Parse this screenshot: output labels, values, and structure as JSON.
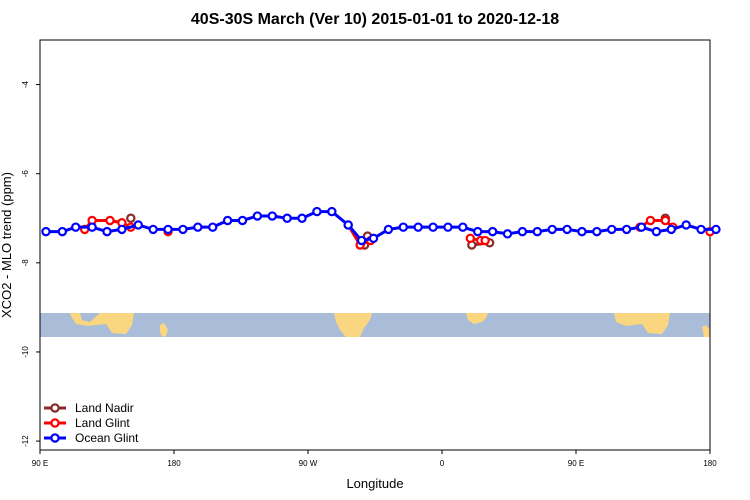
{
  "chart_data": {
    "type": "line",
    "title": "40S-30S March (Ver 10)   2015-01-01 to 2020-12-18",
    "xlabel": "Longitude",
    "ylabel": "XCO2 - MLO trend (ppm)",
    "xlim": [
      90,
      540
    ],
    "ylim": [
      -12.2,
      -3.0
    ],
    "x_ticks": [
      {
        "value": 90,
        "label": "90 E"
      },
      {
        "value": 180,
        "label": "180"
      },
      {
        "value": 270,
        "label": "90 W"
      },
      {
        "value": 360,
        "label": "0"
      },
      {
        "value": 450,
        "label": "90 E"
      },
      {
        "value": 540,
        "label": "180"
      }
    ],
    "y_ticks": [
      {
        "value": -4,
        "label": "-4"
      },
      {
        "value": -6,
        "label": "-6"
      },
      {
        "value": -8,
        "label": "-8"
      },
      {
        "value": -10,
        "label": "-10"
      },
      {
        "value": -12,
        "label": "-12"
      }
    ],
    "legend_position": "bottom-left",
    "series": [
      {
        "name": "Land Nadir",
        "color": "#8b2a2a",
        "points": [
          [
            151,
            -7.0
          ],
          [
            308,
            -7.6
          ],
          [
            310,
            -7.4
          ],
          [
            510,
            -7.0
          ],
          [
            380,
            -7.6
          ],
          [
            392,
            -7.55
          ]
        ]
      },
      {
        "name": "Land Glint",
        "color": "#ff0000",
        "points": [
          [
            120,
            -7.25
          ],
          [
            125,
            -7.05
          ],
          [
            137,
            -7.05
          ],
          [
            145,
            -7.1
          ],
          [
            151,
            -7.2
          ],
          [
            176,
            -7.3
          ],
          [
            297,
            -7.15
          ],
          [
            305,
            -7.6
          ],
          [
            312,
            -7.5
          ],
          [
            379,
            -7.45
          ],
          [
            386,
            -7.5
          ],
          [
            389,
            -7.5
          ],
          [
            493,
            -7.2
          ],
          [
            500,
            -7.05
          ],
          [
            510,
            -7.05
          ],
          [
            515,
            -7.2
          ],
          [
            540,
            -7.3
          ]
        ]
      },
      {
        "name": "Ocean Glint",
        "color": "#0000ff",
        "points": [
          [
            94,
            -7.3
          ],
          [
            105,
            -7.3
          ],
          [
            114,
            -7.2
          ],
          [
            125,
            -7.2
          ],
          [
            135,
            -7.3
          ],
          [
            145,
            -7.25
          ],
          [
            156,
            -7.15
          ],
          [
            166,
            -7.25
          ],
          [
            176,
            -7.25
          ],
          [
            186,
            -7.25
          ],
          [
            196,
            -7.2
          ],
          [
            206,
            -7.2
          ],
          [
            216,
            -7.05
          ],
          [
            226,
            -7.05
          ],
          [
            236,
            -6.95
          ],
          [
            246,
            -6.95
          ],
          [
            256,
            -7.0
          ],
          [
            266,
            -7.0
          ],
          [
            276,
            -6.85
          ],
          [
            286,
            -6.85
          ],
          [
            297,
            -7.15
          ],
          [
            306,
            -7.5
          ],
          [
            314,
            -7.45
          ],
          [
            324,
            -7.25
          ],
          [
            334,
            -7.2
          ],
          [
            344,
            -7.2
          ],
          [
            354,
            -7.2
          ],
          [
            364,
            -7.2
          ],
          [
            374,
            -7.2
          ],
          [
            384,
            -7.3
          ],
          [
            394,
            -7.3
          ],
          [
            404,
            -7.35
          ],
          [
            414,
            -7.3
          ],
          [
            424,
            -7.3
          ],
          [
            434,
            -7.25
          ],
          [
            444,
            -7.25
          ],
          [
            454,
            -7.3
          ],
          [
            464,
            -7.3
          ],
          [
            474,
            -7.25
          ],
          [
            484,
            -7.25
          ],
          [
            494,
            -7.2
          ],
          [
            504,
            -7.3
          ],
          [
            514,
            -7.25
          ],
          [
            524,
            -7.15
          ],
          [
            534,
            -7.25
          ],
          [
            544,
            -7.25
          ]
        ]
      }
    ]
  }
}
